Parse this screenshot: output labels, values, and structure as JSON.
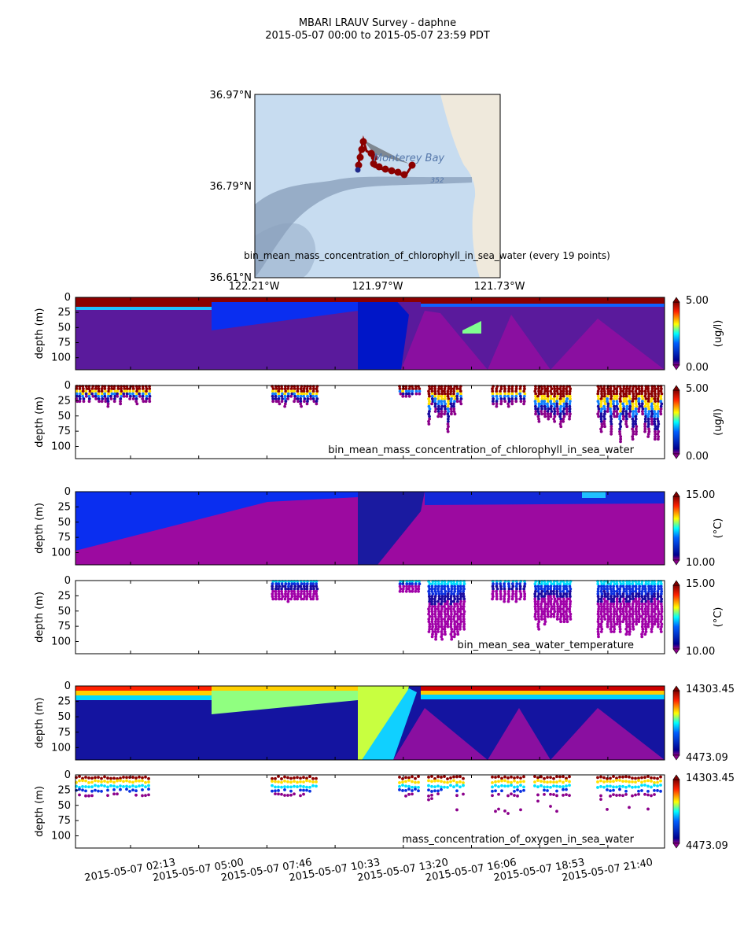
{
  "header": {
    "title": "MBARI LRAUV Survey - daphne",
    "subtitle": "2015-05-07 00:00  to  2015-05-07 23:59 PDT"
  },
  "map": {
    "lat_labels": [
      "36.97°N",
      "36.79°N",
      "36.61°N"
    ],
    "lon_labels": [
      "122.21°W",
      "121.97°W",
      "121.73°W"
    ],
    "place_label": "Monterey Bay",
    "depth_label": "352",
    "caption": "bin_mean_mass_concentration_of_chlorophyll_in_sea_water (every 19 points)",
    "colors": {
      "ocean": "#c7dcf0",
      "land": "#efe9dc",
      "track": "#8b0000",
      "start": "#1f2a8a"
    }
  },
  "axis": {
    "ylabel": "depth (m)",
    "y_ticks": [
      "0",
      "25",
      "50",
      "75",
      "100"
    ],
    "x_ticks": [
      "2015-05-07 02:13",
      "2015-05-07 05:00",
      "2015-05-07 07:46",
      "2015-05-07 10:33",
      "2015-05-07 13:20",
      "2015-05-07 16:06",
      "2015-05-07 18:53",
      "2015-05-07 21:40"
    ]
  },
  "chart_data": [
    {
      "type": "heatmap",
      "variable": "bin_mean_mass_concentration_of_chlorophyll_in_sea_water",
      "ylabel": "depth (m)",
      "ylim": [
        120,
        0
      ],
      "colorbar": {
        "min": "0.00",
        "max": "5.00",
        "units": "(ug/l)"
      }
    },
    {
      "type": "scatter",
      "variable": "bin_mean_mass_concentration_of_chlorophyll_in_sea_water",
      "label": "bin_mean_mass_concentration_of_chlorophyll_in_sea_water",
      "ylabel": "depth (m)",
      "ylim": [
        120,
        0
      ],
      "colorbar": {
        "min": "0.00",
        "max": "5.00",
        "units": "(ug/l)"
      }
    },
    {
      "type": "heatmap",
      "variable": "bin_mean_sea_water_temperature",
      "ylabel": "depth (m)",
      "ylim": [
        120,
        0
      ],
      "colorbar": {
        "min": "10.00",
        "max": "15.00",
        "units": "(°C)"
      }
    },
    {
      "type": "scatter",
      "variable": "bin_mean_sea_water_temperature",
      "label": "bin_mean_sea_water_temperature",
      "ylabel": "depth (m)",
      "ylim": [
        120,
        0
      ],
      "colorbar": {
        "min": "10.00",
        "max": "15.00",
        "units": "(°C)"
      }
    },
    {
      "type": "heatmap",
      "variable": "mass_concentration_of_oxygen_in_sea_water",
      "ylabel": "depth (m)",
      "ylim": [
        120,
        0
      ],
      "colorbar": {
        "min": "4473.09",
        "max": "14303.45",
        "units": ""
      }
    },
    {
      "type": "scatter",
      "variable": "mass_concentration_of_oxygen_in_sea_water",
      "label": "mass_concentration_of_oxygen_in_sea_water",
      "ylabel": "depth (m)",
      "ylim": [
        120,
        0
      ],
      "colorbar": {
        "min": "4473.09",
        "max": "14303.45",
        "units": ""
      }
    }
  ]
}
